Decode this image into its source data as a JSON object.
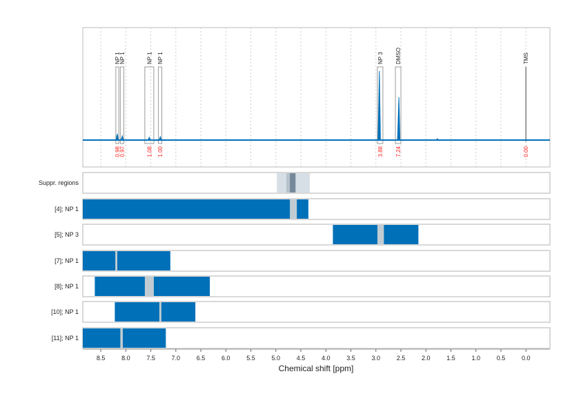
{
  "chart_data": {
    "type": "line",
    "xlabel": "Chemical shift [ppm]",
    "xlim": [
      8.86,
      -0.48
    ],
    "x_reversed": true,
    "xticks": [
      8.5,
      8.0,
      7.5,
      7.0,
      6.5,
      6.0,
      5.5,
      5.0,
      4.5,
      4.0,
      3.5,
      3.0,
      2.5,
      2.0,
      1.5,
      1.0,
      0.5,
      0.0
    ],
    "grid": "vertical dotted",
    "colors": {
      "spectrum": "#0070b8",
      "bar": "#0070b8",
      "gap": "#c0ccd2",
      "integral_label": "#ff2020",
      "box": "#a0a0a0"
    },
    "spectrum_peaks": [
      {
        "ppm": 8.17,
        "intensity": 0.09
      },
      {
        "ppm": 8.07,
        "intensity": 0.06
      },
      {
        "ppm": 7.53,
        "intensity": 0.04
      },
      {
        "ppm": 7.31,
        "intensity": 0.05
      },
      {
        "ppm": 2.93,
        "intensity": 1.0
      },
      {
        "ppm": 2.54,
        "intensity": 0.62
      },
      {
        "ppm": 1.77,
        "intensity": 0.02
      },
      {
        "ppm": 0.0,
        "intensity": 1.05
      }
    ],
    "annotations": [
      {
        "label": "NP 1",
        "from": 8.2,
        "to": 8.14,
        "integral": "0.98"
      },
      {
        "label": "NP 1",
        "from": 8.11,
        "to": 8.04,
        "integral": "0.97"
      },
      {
        "label": "NP 1",
        "from": 7.62,
        "to": 7.44,
        "integral": "1.08"
      },
      {
        "label": "NP 1",
        "from": 7.35,
        "to": 7.28,
        "integral": "1.00"
      },
      {
        "label": "NP 3",
        "from": 2.97,
        "to": 2.86,
        "integral": "3.88"
      },
      {
        "label": "DMSO",
        "from": 2.61,
        "to": 2.5,
        "integral": "7.24"
      },
      {
        "label": "TMS",
        "from": 0.01,
        "to": -0.01,
        "integral": "0.00"
      }
    ],
    "tracks": [
      {
        "label": "Suppr. regions",
        "type": "suppression",
        "bands": [
          [
            4.98,
            4.32
          ],
          [
            4.79,
            4.6
          ],
          [
            4.72,
            4.61
          ]
        ]
      },
      {
        "label": "[4]; NP 1",
        "range": [
          8.86,
          4.35
        ],
        "gap": [
          4.72,
          4.58
        ]
      },
      {
        "label": "[5]; NP 3",
        "range": [
          3.86,
          2.15
        ],
        "gap": [
          2.97,
          2.84
        ]
      },
      {
        "label": "[7]; NP 1",
        "range": [
          8.86,
          7.11
        ],
        "gap": [
          8.21,
          8.17
        ]
      },
      {
        "label": "[8]; NP 1",
        "range": [
          8.62,
          6.32
        ],
        "gap": [
          7.62,
          7.44
        ]
      },
      {
        "label": "[10]; NP 1",
        "range": [
          8.22,
          6.61
        ],
        "gap": [
          7.33,
          7.29
        ]
      },
      {
        "label": "[11]; NP 1",
        "range": [
          8.86,
          7.2
        ],
        "gap": [
          8.11,
          8.06
        ]
      }
    ]
  }
}
